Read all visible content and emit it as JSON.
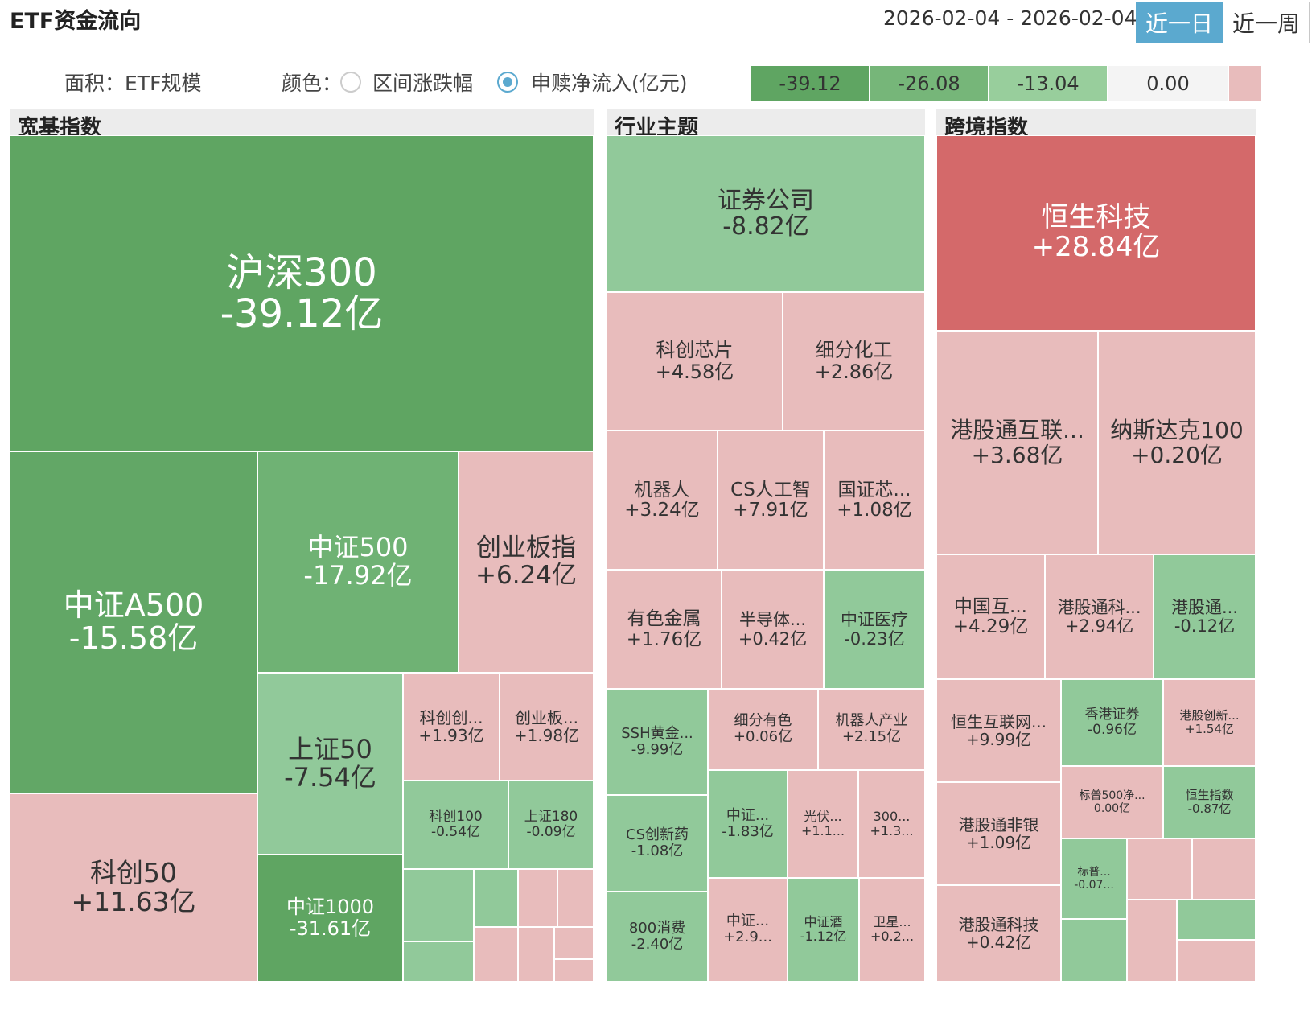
{
  "app": {
    "title": "ETF资金流向"
  },
  "date_range": "2026-02-04 - 2026-02-04",
  "range_buttons": {
    "day": "近一日",
    "week": "近一周"
  },
  "controls": {
    "area_label": "面积：ETF规模",
    "color_label": "颜色：",
    "option_change": "区间涨跌幅",
    "option_flow": "申赎净流入(亿元)"
  },
  "legend": [
    "-39.12",
    "-26.08",
    "-13.04",
    "0.00"
  ],
  "colors": {
    "green_dark": "#5fa562",
    "green_mid": "#6fb274",
    "green_light": "#91c99a",
    "neutral": "#f4f4f4",
    "pink": "#e8bcbc",
    "red": "#d4696a",
    "accent": "#5ba9cf"
  },
  "sections": {
    "broad": "宽基指数",
    "industry": "行业主题",
    "cross": "跨境指数"
  },
  "tiles": {
    "hs300": {
      "name": "沪深300",
      "value": "-39.12亿"
    },
    "zza500": {
      "name": "中证A500",
      "value": "-15.58亿"
    },
    "zz500": {
      "name": "中证500",
      "value": "-17.92亿"
    },
    "cybz": {
      "name": "创业板指",
      "value": "+6.24亿"
    },
    "kc50": {
      "name": "科创50",
      "value": "+11.63亿"
    },
    "sz50": {
      "name": "上证50",
      "value": "-7.54亿"
    },
    "kcc": {
      "name": "科创创...",
      "value": "+1.93亿"
    },
    "cybb": {
      "name": "创业板...",
      "value": "+1.98亿"
    },
    "kc100": {
      "name": "科创100",
      "value": "-0.54亿"
    },
    "sz180": {
      "name": "上证180",
      "value": "-0.09亿"
    },
    "zz1000": {
      "name": "中证1000",
      "value": "-31.61亿"
    },
    "zqgs": {
      "name": "证券公司",
      "value": "-8.82亿"
    },
    "kcxp": {
      "name": "科创芯片",
      "value": "+4.58亿"
    },
    "xfhg": {
      "name": "细分化工",
      "value": "+2.86亿"
    },
    "jqr": {
      "name": "机器人",
      "value": "+3.24亿"
    },
    "csrg": {
      "name": "CS人工智",
      "value": "+7.91亿"
    },
    "gzx": {
      "name": "国证芯...",
      "value": "+1.08亿"
    },
    "ysjs": {
      "name": "有色金属",
      "value": "+1.76亿"
    },
    "bdt": {
      "name": "半导体...",
      "value": "+0.42亿"
    },
    "zzyl": {
      "name": "中证医疗",
      "value": "-0.23亿"
    },
    "sshj": {
      "name": "SSH黄金...",
      "value": "-9.99亿"
    },
    "xfys": {
      "name": "细分有色",
      "value": "+0.06亿"
    },
    "jqrcy": {
      "name": "机器人产业",
      "value": "+2.15亿"
    },
    "csxy": {
      "name": "CS创新药",
      "value": "-1.08亿"
    },
    "zz2": {
      "name": "中证...",
      "value": "-1.83亿"
    },
    "gf": {
      "name": "光伏...",
      "value": "+1.1..."
    },
    "s300": {
      "name": "300...",
      "value": "+1.3..."
    },
    "xf800": {
      "name": "800消费",
      "value": "-2.40亿"
    },
    "zz3": {
      "name": "中证...",
      "value": "+2.9..."
    },
    "zzj": {
      "name": "中证酒",
      "value": "-1.12亿"
    },
    "wx": {
      "name": "卫星...",
      "value": "+0.2..."
    },
    "hskj": {
      "name": "恒生科技",
      "value": "+28.84亿"
    },
    "ggthl": {
      "name": "港股通互联...",
      "value": "+3.68亿"
    },
    "nsdk": {
      "name": "纳斯达克100",
      "value": "+0.20亿"
    },
    "zghl": {
      "name": "中国互...",
      "value": "+4.29亿"
    },
    "ggtk": {
      "name": "港股通科...",
      "value": "+2.94亿"
    },
    "ggt2": {
      "name": "港股通...",
      "value": "-0.12亿"
    },
    "hshlw": {
      "name": "恒生互联网...",
      "value": "+9.99亿"
    },
    "xgzq": {
      "name": "香港证券",
      "value": "-0.96亿"
    },
    "ggcx": {
      "name": "港股创新...",
      "value": "+1.54亿"
    },
    "bp500": {
      "name": "标普500净...",
      "value": "0.00亿"
    },
    "hszs": {
      "name": "恒生指数",
      "value": "-0.87亿"
    },
    "ggtfy": {
      "name": "港股通非银",
      "value": "+1.09亿"
    },
    "bp2": {
      "name": "标普...",
      "value": "-0.07..."
    },
    "ggtkj": {
      "name": "港股通科技",
      "value": "+0.42亿"
    }
  }
}
